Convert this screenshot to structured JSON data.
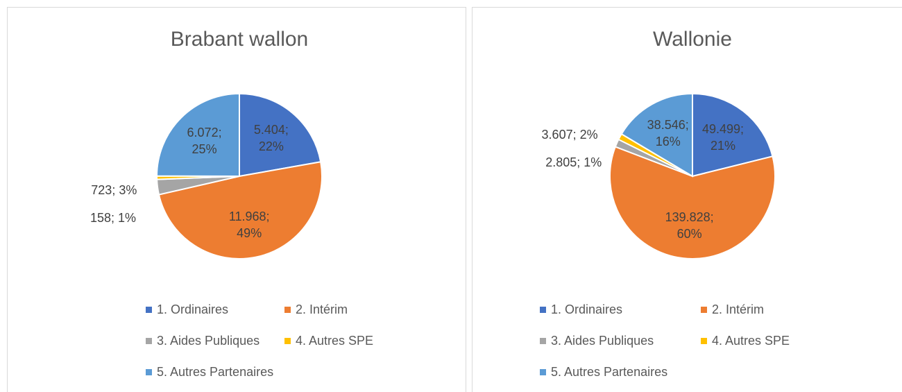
{
  "chart_data": [
    {
      "type": "pie",
      "title": "Brabant wallon",
      "categories": [
        "1. Ordinaires",
        "2. Intérim",
        "3. Aides Publiques",
        "4. Autres SPE",
        "5. Autres Partenaires"
      ],
      "values": [
        5404,
        11968,
        723,
        158,
        6072
      ],
      "value_labels": [
        "5.404; 22%",
        "11.968; 49%",
        "723; 3%",
        "158; 1%",
        "6.072; 25%"
      ],
      "colors": [
        "#4472c4",
        "#ed7d31",
        "#a5a5a5",
        "#ffc000",
        "#5b9bd5"
      ]
    },
    {
      "type": "pie",
      "title": "Wallonie",
      "categories": [
        "1. Ordinaires",
        "2. Intérim",
        "3. Aides Publiques",
        "4. Autres SPE",
        "5. Autres Partenaires"
      ],
      "values": [
        49499,
        139828,
        3607,
        2805,
        38546
      ],
      "value_labels": [
        "49.499; 21%",
        "139.828; 60%",
        "3.607; 2%",
        "2.805; 1%",
        "38.546; 16%"
      ],
      "colors": [
        "#4472c4",
        "#ed7d31",
        "#a5a5a5",
        "#ffc000",
        "#5b9bd5"
      ]
    }
  ]
}
